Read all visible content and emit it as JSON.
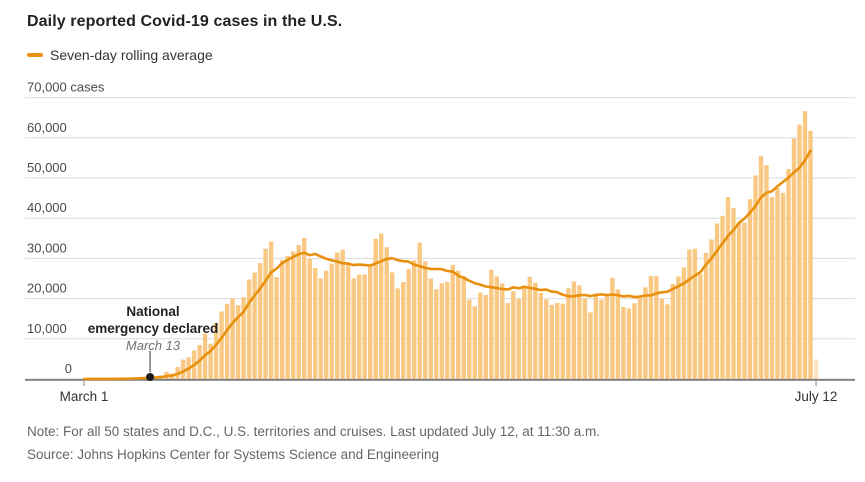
{
  "footer": {
    "note": "Note: For all 50 states and D.C., U.S. territories and cruises. Last updated July 12, at 11:30 a.m.",
    "source": "Source: Johns Hopkins Center for Systems Science and Engineering"
  },
  "chart_data": {
    "type": "bar",
    "title": "Daily reported Covid-19 cases in the U.S.",
    "legend": "Seven-day rolling average",
    "rolling_window": 7,
    "ylim": [
      0,
      70000
    ],
    "ytick_step": 10000,
    "ytick_top_suffix": " cases",
    "grid": true,
    "x_ticks": [
      {
        "label": "March 1",
        "day_index": 0
      },
      {
        "label": "July 12",
        "day_index": 133
      }
    ],
    "annotation": {
      "line1": "National",
      "line2": "emergency declared",
      "line3": "March 13",
      "day_index": 12
    },
    "last_bar_partial": true,
    "values": [
      6,
      23,
      19,
      33,
      77,
      63,
      105,
      95,
      194,
      292,
      337,
      451,
      568,
      723,
      838,
      1789,
      1362,
      2988,
      4835,
      5374,
      7123,
      8459,
      11236,
      8789,
      13963,
      16797,
      18695,
      19979,
      18360,
      20353,
      24742,
      26473,
      28819,
      32425,
      34196,
      25316,
      29595,
      30613,
      31709,
      33323,
      35098,
      29861,
      27620,
      25023,
      26922,
      28680,
      31451,
      32165,
      29002,
      25048,
      25995,
      25985,
      28065,
      34856,
      36188,
      32796,
      26509,
      22541,
      24132,
      27326,
      29517,
      33955,
      29288,
      24972,
      22335,
      23841,
      24128,
      28420,
      26906,
      25612,
      19731,
      18117,
      21467,
      20869,
      27143,
      25508,
      23792,
      18873,
      21841,
      19970,
      23285,
      25434,
      23931,
      21395,
      19790,
      18439,
      18922,
      18721,
      22577,
      24266,
      23290,
      20058,
      16571,
      21003,
      19699,
      21140,
      25176,
      22302,
      17919,
      17598,
      18822,
      20715,
      22800,
      25640,
      25540,
      19920,
      18577,
      23652,
      25520,
      27762,
      32218,
      32411,
      26079,
      31402,
      34720,
      38672,
      40588,
      45255,
      42486,
      38800,
      38910,
      44734,
      50655,
      55442,
      53211,
      45255,
      47511,
      46329,
      52228,
      59803,
      63247,
      66627,
      61719,
      4900
    ],
    "colors": {
      "bar": "#F9C883",
      "bar_partial": "#FBE4C0",
      "line": "#E8900E",
      "grid": "#DBDBDB",
      "axis": "#7A7A7A",
      "title": "#222222"
    }
  }
}
